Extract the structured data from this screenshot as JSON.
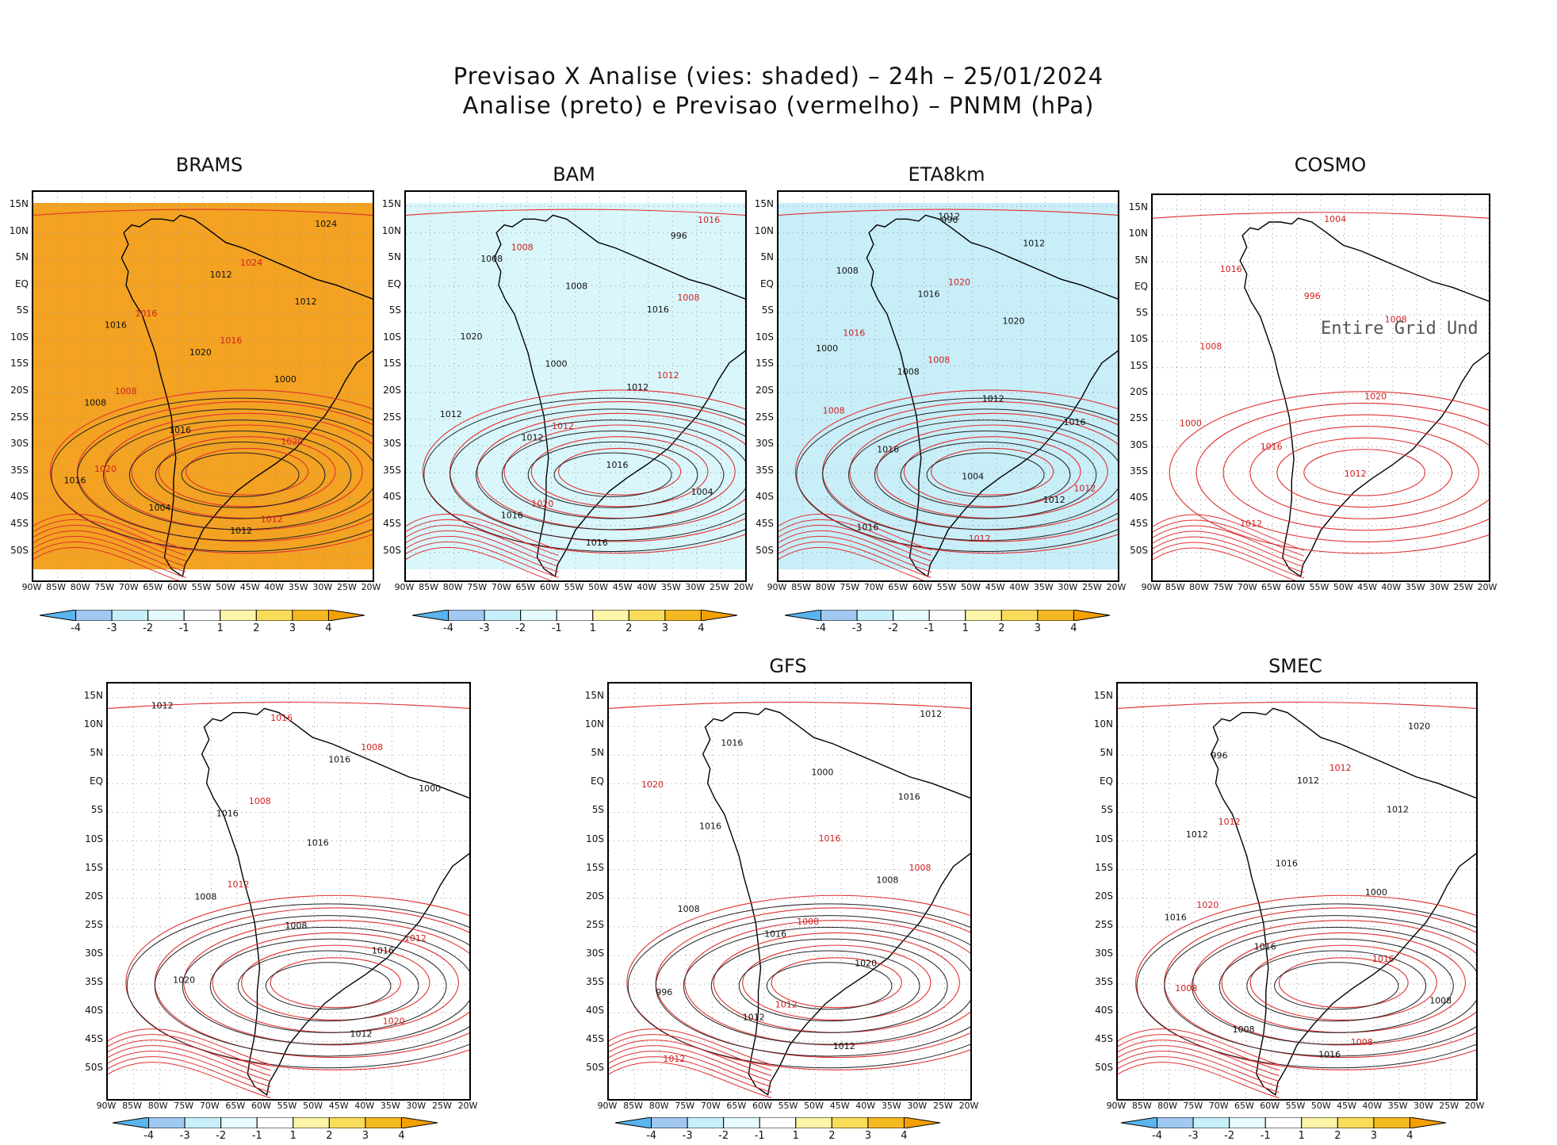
{
  "title": {
    "line1": "Previsao X Analise (vies: shaded) – 24h – 25/01/2024",
    "line2": "Analise (preto) e Previsao (vermelho) – PNMM (hPa)"
  },
  "lat_labels": [
    "15N",
    "10N",
    "5N",
    "EQ",
    "5S",
    "10S",
    "15S",
    "20S",
    "25S",
    "30S",
    "35S",
    "40S",
    "45S",
    "50S"
  ],
  "lon_labels": [
    "90W",
    "85W",
    "80W",
    "75W",
    "70W",
    "65W",
    "60W",
    "55W",
    "50W",
    "45W",
    "40W",
    "35W",
    "30W",
    "25W",
    "20W"
  ],
  "colorbar": {
    "labels": [
      "-4",
      "-3",
      "-2",
      "-1",
      "1",
      "2",
      "3",
      "4"
    ],
    "colors": [
      "#5ab4ee",
      "#a0c8f0",
      "#c8f0fa",
      "#e6fbfd",
      "#ffffff",
      "#fdf5a8",
      "#f8dc5a",
      "#f4b820",
      "#f4a000"
    ]
  },
  "panels": [
    {
      "name": "BRAMS",
      "fill": "#f3a221",
      "contours_black": [
        "1016",
        "1012",
        "1008",
        "1012",
        "1016",
        "1020",
        "1024",
        "1016",
        "1012",
        "1004",
        "1000"
      ],
      "contours_red": [
        "1020",
        "1016",
        "1012",
        "1008",
        "1024",
        "1020",
        "1016"
      ]
    },
    {
      "name": "BAM",
      "fill": "#d9f6fb",
      "contours_black": [
        "1012",
        "1016",
        "1016",
        "1012",
        "1008",
        "1016",
        "1020",
        "1016",
        "1012",
        "1008",
        "1004",
        "1000",
        "996"
      ],
      "contours_red": [
        "1016",
        "1012",
        "1008",
        "1020",
        "1012",
        "1008"
      ]
    },
    {
      "name": "ETA8km",
      "fill": "#c8eef8",
      "contours_black": [
        "1012",
        "1016",
        "1016",
        "1012",
        "1008",
        "1012",
        "1016",
        "1020",
        "1016",
        "1012",
        "1008",
        "1004",
        "1000",
        "996"
      ],
      "contours_red": [
        "1016",
        "1012",
        "1008",
        "1020",
        "1012",
        "1008"
      ]
    },
    {
      "name": "COSMO",
      "fill": "#ffffff",
      "contours_black": [],
      "contours_red": [
        "1016",
        "1008",
        "1012",
        "1020",
        "1016",
        "1012",
        "1008",
        "1004",
        "1000",
        "996"
      ],
      "overlay_text": "Entire Grid Und"
    },
    {
      "name": "",
      "fill": "#ffffff",
      "contours_black": [
        "1016",
        "1016",
        "1012",
        "1008",
        "1016",
        "1020",
        "1016",
        "1012",
        "1008",
        "1000"
      ],
      "contours_red": [
        "1016",
        "1012",
        "1008",
        "1020",
        "1012",
        "1008"
      ]
    },
    {
      "name": "GFS",
      "fill": "#ffffff",
      "contours_black": [
        "1012",
        "1016",
        "1016",
        "1012",
        "1008",
        "1016",
        "1020",
        "1016",
        "1012",
        "1008",
        "1000",
        "996"
      ],
      "contours_red": [
        "1016",
        "1012",
        "1008",
        "1020",
        "1012",
        "1008"
      ]
    },
    {
      "name": "SMEC",
      "fill": "#ffffff",
      "contours_black": [
        "1012",
        "1016",
        "1016",
        "1012",
        "1008",
        "1016",
        "1020",
        "1016",
        "1012",
        "1008",
        "1000",
        "996"
      ],
      "contours_red": [
        "1016",
        "1012",
        "1008",
        "1020",
        "1012",
        "1008"
      ]
    }
  ]
}
